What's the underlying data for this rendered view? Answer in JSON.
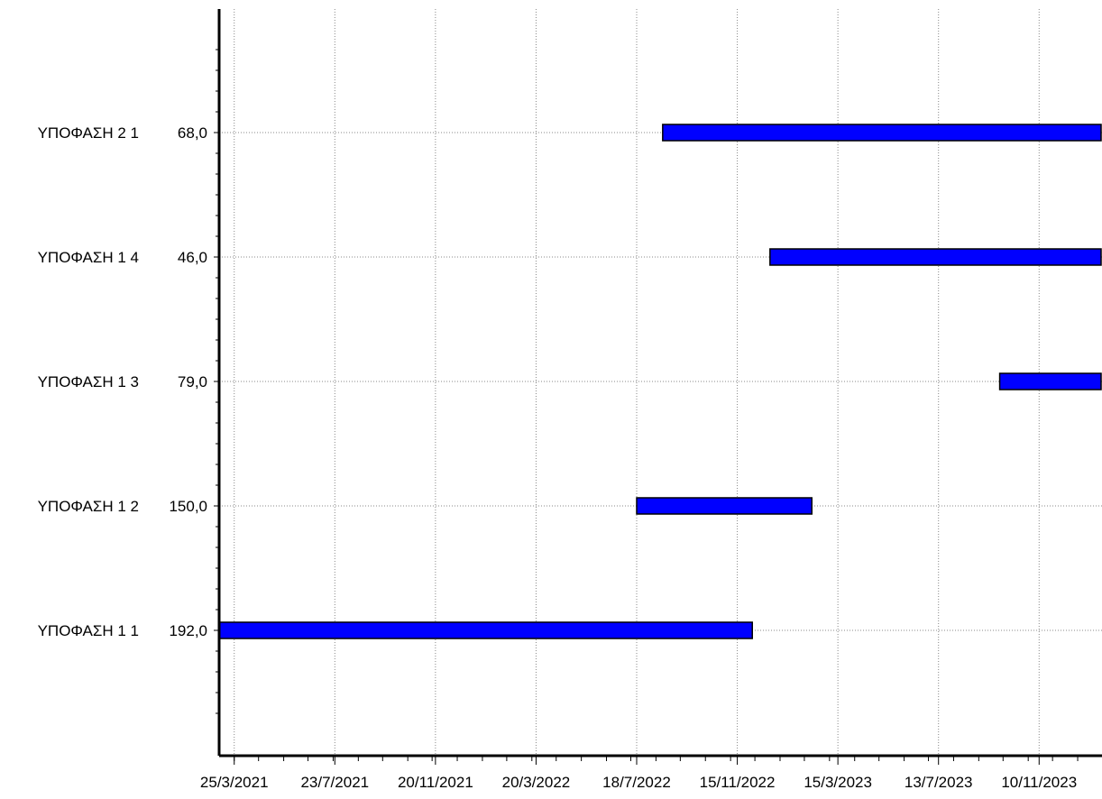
{
  "chart_data": {
    "type": "bar",
    "orientation": "horizontal-gantt",
    "grid": true,
    "colors": {
      "bar": "#0000ff",
      "bar_border": "#000000",
      "axis": "#000000",
      "grid": "#888888"
    },
    "x_axis": {
      "type": "date",
      "range": [
        "2021-03-07",
        "2024-01-24"
      ],
      "tick_dates": [
        "2021-03-25",
        "2021-07-23",
        "2021-11-20",
        "2022-03-20",
        "2022-07-18",
        "2022-11-15",
        "2023-03-15",
        "2023-07-13",
        "2023-11-10"
      ],
      "tick_labels": [
        "25/3/2021",
        "23/7/2021",
        "20/11/2021",
        "20/3/2022",
        "18/7/2022",
        "15/11/2022",
        "15/3/2023",
        "13/7/2023",
        "10/11/2023"
      ]
    },
    "tasks": [
      {
        "name": "ΥΠΟΦΑΣΗ 2 1",
        "value_label": "68,0",
        "start": "2022-08-18",
        "end": "2024-01-24"
      },
      {
        "name": "ΥΠΟΦΑΣΗ 1 4",
        "value_label": "46,0",
        "start": "2022-12-24",
        "end": "2024-01-24"
      },
      {
        "name": "ΥΠΟΦΑΣΗ 1 3",
        "value_label": "79,0",
        "start": "2023-09-24",
        "end": "2024-01-24"
      },
      {
        "name": "ΥΠΟΦΑΣΗ 1 2",
        "value_label": "150,0",
        "start": "2022-07-18",
        "end": "2023-02-13"
      },
      {
        "name": "ΥΠΟΦΑΣΗ 1 1",
        "value_label": "192,0",
        "start": "2021-03-07",
        "end": "2022-12-04"
      }
    ]
  }
}
